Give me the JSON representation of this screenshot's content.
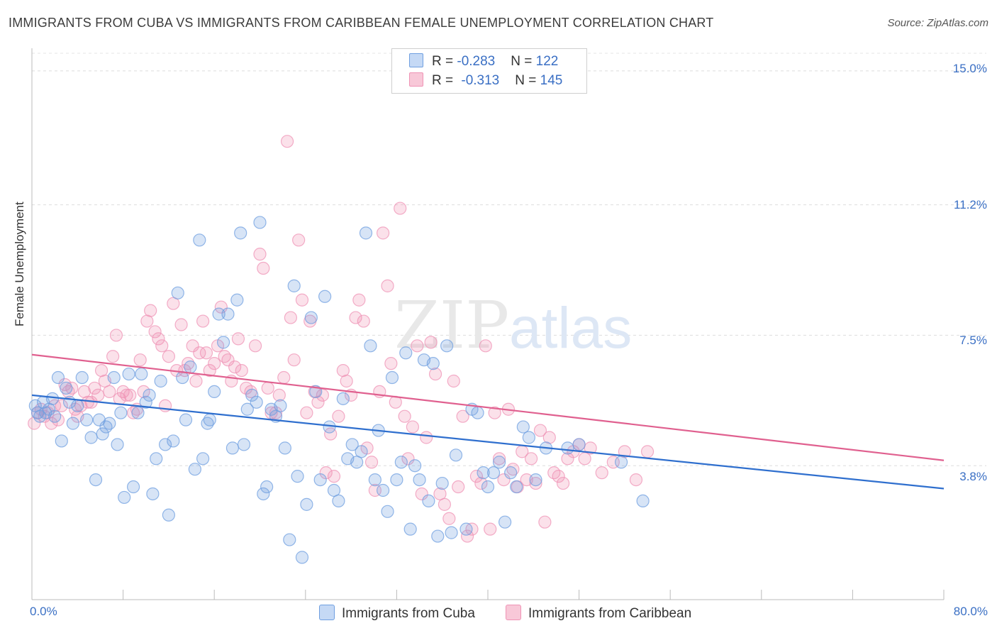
{
  "header": {
    "title": "IMMIGRANTS FROM CUBA VS IMMIGRANTS FROM CARIBBEAN FEMALE UNEMPLOYMENT CORRELATION CHART",
    "source": "Source: ZipAtlas.com"
  },
  "legend": {
    "cuba": {
      "r_label": "R = ",
      "r_value": "-0.283",
      "n_label": "N = ",
      "n_value": "122"
    },
    "caribbean": {
      "r_label": "R = ",
      "r_value": "-0.313",
      "n_label": "N = ",
      "n_value": "145"
    }
  },
  "chart_data": {
    "type": "scatter",
    "title": "IMMIGRANTS FROM CUBA VS IMMIGRANTS FROM CARIBBEAN FEMALE UNEMPLOYMENT CORRELATION CHART",
    "xlabel": "",
    "ylabel": "Female Unemployment",
    "xlim": [
      0,
      80
    ],
    "ylim": [
      0,
      15.5
    ],
    "x_tick_labels": [
      "0.0%",
      "80.0%"
    ],
    "y_ticks": [
      3.8,
      7.5,
      11.2,
      15.0
    ],
    "y_tick_labels": [
      "3.8%",
      "7.5%",
      "11.2%",
      "15.0%"
    ],
    "watermark": "ZIPatlas",
    "colors": {
      "cuba": "#6f9fe0",
      "caribbean": "#ef93b5",
      "cuba_line": "#2f6fce",
      "caribbean_line": "#e0608f"
    },
    "series": [
      {
        "name": "Immigrants from Cuba",
        "trend": {
          "x": [
            0,
            80
          ],
          "y": [
            5.8,
            3.15
          ]
        },
        "points": [
          [
            0.3,
            5.5
          ],
          [
            0.5,
            5.3
          ],
          [
            0.7,
            5.2
          ],
          [
            1.0,
            5.6
          ],
          [
            1.2,
            5.3
          ],
          [
            1.5,
            5.4
          ],
          [
            1.8,
            5.7
          ],
          [
            2.0,
            5.2
          ],
          [
            2.3,
            6.3
          ],
          [
            2.6,
            4.5
          ],
          [
            3.0,
            6.0
          ],
          [
            3.3,
            5.6
          ],
          [
            3.6,
            5.0
          ],
          [
            4.0,
            5.5
          ],
          [
            4.4,
            6.3
          ],
          [
            4.8,
            5.1
          ],
          [
            5.2,
            4.6
          ],
          [
            5.6,
            3.4
          ],
          [
            5.9,
            5.1
          ],
          [
            6.2,
            4.7
          ],
          [
            6.5,
            4.9
          ],
          [
            6.8,
            5.0
          ],
          [
            7.2,
            6.3
          ],
          [
            7.5,
            4.4
          ],
          [
            7.8,
            5.3
          ],
          [
            8.1,
            2.9
          ],
          [
            8.5,
            6.4
          ],
          [
            8.9,
            3.2
          ],
          [
            9.3,
            5.3
          ],
          [
            9.6,
            6.4
          ],
          [
            10.0,
            5.6
          ],
          [
            10.3,
            5.8
          ],
          [
            10.6,
            3.0
          ],
          [
            10.9,
            4.0
          ],
          [
            11.3,
            6.2
          ],
          [
            11.7,
            4.4
          ],
          [
            12.0,
            2.4
          ],
          [
            12.4,
            4.5
          ],
          [
            12.8,
            8.7
          ],
          [
            13.2,
            6.3
          ],
          [
            13.5,
            5.1
          ],
          [
            13.9,
            6.6
          ],
          [
            14.3,
            3.7
          ],
          [
            14.7,
            10.2
          ],
          [
            15.0,
            4.0
          ],
          [
            15.4,
            5.0
          ],
          [
            15.6,
            5.1
          ],
          [
            16.0,
            5.9
          ],
          [
            16.4,
            8.1
          ],
          [
            16.8,
            7.3
          ],
          [
            17.2,
            8.1
          ],
          [
            17.6,
            4.3
          ],
          [
            18.0,
            8.5
          ],
          [
            18.3,
            10.4
          ],
          [
            18.6,
            4.4
          ],
          [
            18.9,
            5.4
          ],
          [
            19.3,
            5.8
          ],
          [
            19.7,
            5.6
          ],
          [
            20.0,
            10.7
          ],
          [
            20.3,
            3.0
          ],
          [
            20.6,
            3.2
          ],
          [
            21.0,
            5.4
          ],
          [
            21.4,
            5.2
          ],
          [
            21.8,
            5.5
          ],
          [
            22.2,
            4.3
          ],
          [
            22.6,
            1.7
          ],
          [
            23.0,
            8.9
          ],
          [
            23.3,
            3.5
          ],
          [
            23.7,
            1.2
          ],
          [
            24.1,
            2.7
          ],
          [
            24.5,
            8.0
          ],
          [
            24.9,
            5.9
          ],
          [
            25.3,
            3.4
          ],
          [
            25.7,
            8.6
          ],
          [
            26.1,
            4.9
          ],
          [
            26.5,
            3.1
          ],
          [
            26.9,
            2.8
          ],
          [
            27.3,
            5.7
          ],
          [
            27.7,
            4.0
          ],
          [
            28.1,
            4.4
          ],
          [
            28.5,
            3.9
          ],
          [
            28.9,
            4.2
          ],
          [
            29.3,
            10.4
          ],
          [
            29.7,
            7.2
          ],
          [
            30.1,
            3.4
          ],
          [
            30.4,
            4.8
          ],
          [
            30.8,
            3.1
          ],
          [
            31.2,
            2.5
          ],
          [
            31.6,
            6.3
          ],
          [
            32.0,
            3.4
          ],
          [
            32.4,
            3.9
          ],
          [
            32.8,
            7.0
          ],
          [
            33.2,
            2.0
          ],
          [
            33.6,
            3.8
          ],
          [
            34.0,
            3.4
          ],
          [
            34.4,
            6.8
          ],
          [
            34.8,
            2.8
          ],
          [
            35.2,
            6.7
          ],
          [
            35.6,
            1.8
          ],
          [
            36.0,
            3.3
          ],
          [
            36.4,
            7.2
          ],
          [
            36.8,
            1.9
          ],
          [
            37.2,
            4.1
          ],
          [
            38.1,
            2.0
          ],
          [
            38.6,
            5.4
          ],
          [
            39.1,
            5.3
          ],
          [
            39.6,
            3.6
          ],
          [
            40.0,
            3.2
          ],
          [
            40.5,
            3.6
          ],
          [
            41.0,
            3.9
          ],
          [
            41.5,
            2.2
          ],
          [
            42.0,
            3.6
          ],
          [
            42.5,
            3.2
          ],
          [
            43.1,
            4.9
          ],
          [
            43.6,
            4.6
          ],
          [
            44.2,
            3.4
          ],
          [
            45.1,
            4.3
          ],
          [
            47.0,
            4.3
          ],
          [
            48.0,
            4.4
          ],
          [
            51.7,
            3.9
          ],
          [
            53.6,
            2.8
          ]
        ]
      },
      {
        "name": "Immigrants from Caribbean",
        "trend": {
          "x": [
            0,
            80
          ],
          "y": [
            6.95,
            3.95
          ]
        },
        "points": [
          [
            0.2,
            5.0
          ],
          [
            0.5,
            5.3
          ],
          [
            0.8,
            5.4
          ],
          [
            1.1,
            5.2
          ],
          [
            1.4,
            5.3
          ],
          [
            1.7,
            5.0
          ],
          [
            2.0,
            5.5
          ],
          [
            2.3,
            5.1
          ],
          [
            2.6,
            5.5
          ],
          [
            2.9,
            6.1
          ],
          [
            3.2,
            5.9
          ],
          [
            3.5,
            6.0
          ],
          [
            3.8,
            5.4
          ],
          [
            4.0,
            5.2
          ],
          [
            4.3,
            5.5
          ],
          [
            4.6,
            5.9
          ],
          [
            4.9,
            5.6
          ],
          [
            5.2,
            5.6
          ],
          [
            5.5,
            6.0
          ],
          [
            5.8,
            5.8
          ],
          [
            6.1,
            6.5
          ],
          [
            6.4,
            6.2
          ],
          [
            6.8,
            5.9
          ],
          [
            7.1,
            6.9
          ],
          [
            7.4,
            7.5
          ],
          [
            7.7,
            5.7
          ],
          [
            8.0,
            5.9
          ],
          [
            8.3,
            5.8
          ],
          [
            8.6,
            5.8
          ],
          [
            8.9,
            5.3
          ],
          [
            9.2,
            5.4
          ],
          [
            9.5,
            6.8
          ],
          [
            9.8,
            5.9
          ],
          [
            10.1,
            7.9
          ],
          [
            10.4,
            8.2
          ],
          [
            10.8,
            7.6
          ],
          [
            11.1,
            7.4
          ],
          [
            11.4,
            7.2
          ],
          [
            11.7,
            5.5
          ],
          [
            12.0,
            6.9
          ],
          [
            12.4,
            8.4
          ],
          [
            12.7,
            6.5
          ],
          [
            13.1,
            7.8
          ],
          [
            13.4,
            6.5
          ],
          [
            13.7,
            6.7
          ],
          [
            14.1,
            7.2
          ],
          [
            14.4,
            6.2
          ],
          [
            14.7,
            7.0
          ],
          [
            15.0,
            7.9
          ],
          [
            15.3,
            7.0
          ],
          [
            15.6,
            6.5
          ],
          [
            16.0,
            6.7
          ],
          [
            16.3,
            7.2
          ],
          [
            16.6,
            8.3
          ],
          [
            16.9,
            6.9
          ],
          [
            17.2,
            6.8
          ],
          [
            17.5,
            6.2
          ],
          [
            17.8,
            6.6
          ],
          [
            18.1,
            7.4
          ],
          [
            18.4,
            6.5
          ],
          [
            18.8,
            6.0
          ],
          [
            19.2,
            5.9
          ],
          [
            19.6,
            7.2
          ],
          [
            20.0,
            9.8
          ],
          [
            20.3,
            9.4
          ],
          [
            20.7,
            6.0
          ],
          [
            21.0,
            5.3
          ],
          [
            21.4,
            5.3
          ],
          [
            21.7,
            5.8
          ],
          [
            22.1,
            6.3
          ],
          [
            22.4,
            13.0
          ],
          [
            22.7,
            8.0
          ],
          [
            23.0,
            6.8
          ],
          [
            23.4,
            10.2
          ],
          [
            23.7,
            8.5
          ],
          [
            24.1,
            5.3
          ],
          [
            24.4,
            7.9
          ],
          [
            24.8,
            5.9
          ],
          [
            25.1,
            5.6
          ],
          [
            25.5,
            5.8
          ],
          [
            25.8,
            3.6
          ],
          [
            26.2,
            4.7
          ],
          [
            26.5,
            3.5
          ],
          [
            26.9,
            5.2
          ],
          [
            27.3,
            6.5
          ],
          [
            27.6,
            6.2
          ],
          [
            28.0,
            5.8
          ],
          [
            28.4,
            8.0
          ],
          [
            28.7,
            8.5
          ],
          [
            29.1,
            7.9
          ],
          [
            29.4,
            4.3
          ],
          [
            29.8,
            3.9
          ],
          [
            30.1,
            3.1
          ],
          [
            30.5,
            5.9
          ],
          [
            30.8,
            10.4
          ],
          [
            31.2,
            8.9
          ],
          [
            31.5,
            6.7
          ],
          [
            31.9,
            5.6
          ],
          [
            32.3,
            11.1
          ],
          [
            32.7,
            5.2
          ],
          [
            33.0,
            4.0
          ],
          [
            33.4,
            4.9
          ],
          [
            33.8,
            7.2
          ],
          [
            34.2,
            3.0
          ],
          [
            34.6,
            4.6
          ],
          [
            35.0,
            7.3
          ],
          [
            35.4,
            6.4
          ],
          [
            35.8,
            3.0
          ],
          [
            36.2,
            2.7
          ],
          [
            36.6,
            2.3
          ],
          [
            37.0,
            6.2
          ],
          [
            37.4,
            3.2
          ],
          [
            37.8,
            5.2
          ],
          [
            38.2,
            1.8
          ],
          [
            38.6,
            2.0
          ],
          [
            39.0,
            3.5
          ],
          [
            39.4,
            3.3
          ],
          [
            39.8,
            7.2
          ],
          [
            40.2,
            2.0
          ],
          [
            40.6,
            5.3
          ],
          [
            41.0,
            4.0
          ],
          [
            41.4,
            3.4
          ],
          [
            41.8,
            5.4
          ],
          [
            42.2,
            3.7
          ],
          [
            42.6,
            3.2
          ],
          [
            43.0,
            4.2
          ],
          [
            43.4,
            3.4
          ],
          [
            43.8,
            4.0
          ],
          [
            44.2,
            3.3
          ],
          [
            44.6,
            4.8
          ],
          [
            45.0,
            2.2
          ],
          [
            45.4,
            4.6
          ],
          [
            45.8,
            3.6
          ],
          [
            46.2,
            3.5
          ],
          [
            46.6,
            3.3
          ],
          [
            47.0,
            4.0
          ],
          [
            47.5,
            4.2
          ],
          [
            48.0,
            4.4
          ],
          [
            48.5,
            4.0
          ],
          [
            49.0,
            4.3
          ],
          [
            50.0,
            3.6
          ],
          [
            51.0,
            3.9
          ],
          [
            52.0,
            4.2
          ],
          [
            53.0,
            3.4
          ],
          [
            54.0,
            4.2
          ]
        ]
      }
    ]
  },
  "axes": {
    "ylabel": "Female Unemployment",
    "x_min_label": "0.0%",
    "x_max_label": "80.0%",
    "y_labels": [
      "15.0%",
      "11.2%",
      "7.5%",
      "3.8%"
    ]
  },
  "bottom_legend": {
    "cuba": "Immigrants from Cuba",
    "caribbean": "Immigrants from Caribbean"
  }
}
